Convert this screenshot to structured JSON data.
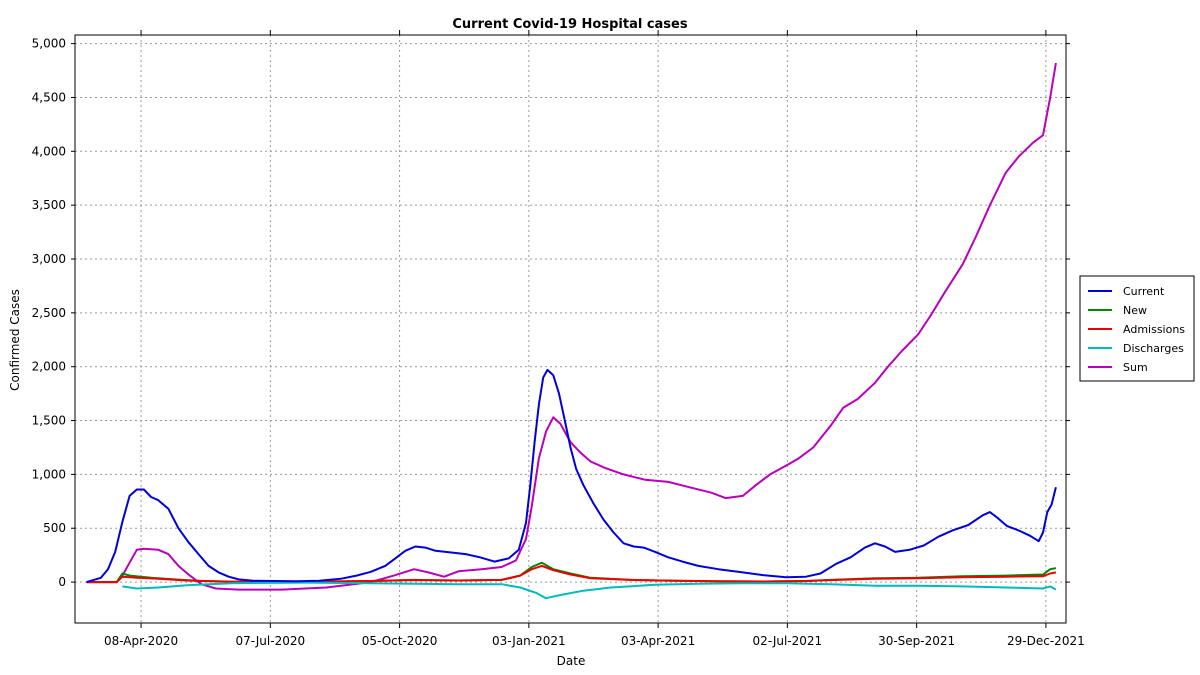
{
  "chart_data": {
    "type": "line",
    "title": "Current Covid-19 Hospital cases",
    "xlabel": "Date",
    "ylabel": "Confirmed Cases",
    "ylim": [
      -380,
      5080
    ],
    "xlim": [
      "2020-02-22",
      "2022-01-12"
    ],
    "y_ticks": [
      0,
      500,
      1000,
      1500,
      2000,
      2500,
      3000,
      3500,
      4000,
      4500,
      5000
    ],
    "y_tick_labels": [
      "0",
      "500",
      "1,000",
      "1,500",
      "2,000",
      "2,500",
      "3,000",
      "3,500",
      "4,000",
      "4,500",
      "5,000"
    ],
    "x_ticks": [
      "2020-04-08",
      "2020-07-07",
      "2020-10-05",
      "2021-01-03",
      "2021-04-03",
      "2021-07-02",
      "2021-09-30",
      "2021-12-29"
    ],
    "x_tick_labels": [
      "08-Apr-2020",
      "07-Jul-2020",
      "05-Oct-2020",
      "03-Jan-2021",
      "03-Apr-2021",
      "02-Jul-2021",
      "30-Sep-2021",
      "29-Dec-2021"
    ],
    "grid": true,
    "legend_position": "right",
    "series": [
      {
        "name": "Current",
        "color": "#0000dd",
        "points": [
          [
            "2020-03-01",
            0
          ],
          [
            "2020-03-06",
            20
          ],
          [
            "2020-03-11",
            40
          ],
          [
            "2020-03-16",
            120
          ],
          [
            "2020-03-21",
            280
          ],
          [
            "2020-03-26",
            560
          ],
          [
            "2020-03-31",
            800
          ],
          [
            "2020-04-05",
            860
          ],
          [
            "2020-04-10",
            860
          ],
          [
            "2020-04-15",
            790
          ],
          [
            "2020-04-20",
            760
          ],
          [
            "2020-04-27",
            680
          ],
          [
            "2020-05-04",
            500
          ],
          [
            "2020-05-11",
            370
          ],
          [
            "2020-05-18",
            260
          ],
          [
            "2020-05-25",
            150
          ],
          [
            "2020-06-01",
            90
          ],
          [
            "2020-06-08",
            50
          ],
          [
            "2020-06-15",
            25
          ],
          [
            "2020-06-25",
            12
          ],
          [
            "2020-07-10",
            10
          ],
          [
            "2020-07-25",
            8
          ],
          [
            "2020-08-10",
            12
          ],
          [
            "2020-08-25",
            30
          ],
          [
            "2020-09-05",
            60
          ],
          [
            "2020-09-15",
            95
          ],
          [
            "2020-09-25",
            150
          ],
          [
            "2020-10-02",
            220
          ],
          [
            "2020-10-09",
            290
          ],
          [
            "2020-10-16",
            330
          ],
          [
            "2020-10-23",
            320
          ],
          [
            "2020-10-30",
            290
          ],
          [
            "2020-11-10",
            275
          ],
          [
            "2020-11-20",
            260
          ],
          [
            "2020-11-30",
            230
          ],
          [
            "2020-12-10",
            190
          ],
          [
            "2020-12-20",
            220
          ],
          [
            "2020-12-27",
            300
          ],
          [
            "2021-01-01",
            550
          ],
          [
            "2021-01-04",
            900
          ],
          [
            "2021-01-07",
            1300
          ],
          [
            "2021-01-10",
            1650
          ],
          [
            "2021-01-13",
            1900
          ],
          [
            "2021-01-16",
            1970
          ],
          [
            "2021-01-20",
            1920
          ],
          [
            "2021-01-24",
            1750
          ],
          [
            "2021-01-28",
            1500
          ],
          [
            "2021-02-01",
            1250
          ],
          [
            "2021-02-05",
            1050
          ],
          [
            "2021-02-10",
            900
          ],
          [
            "2021-02-17",
            730
          ],
          [
            "2021-02-24",
            580
          ],
          [
            "2021-03-03",
            460
          ],
          [
            "2021-03-10",
            360
          ],
          [
            "2021-03-17",
            330
          ],
          [
            "2021-03-24",
            320
          ],
          [
            "2021-04-01",
            280
          ],
          [
            "2021-04-10",
            230
          ],
          [
            "2021-04-20",
            190
          ],
          [
            "2021-05-01",
            150
          ],
          [
            "2021-05-15",
            120
          ],
          [
            "2021-06-01",
            90
          ],
          [
            "2021-06-15",
            65
          ],
          [
            "2021-07-01",
            45
          ],
          [
            "2021-07-15",
            50
          ],
          [
            "2021-07-25",
            80
          ],
          [
            "2021-08-05",
            170
          ],
          [
            "2021-08-15",
            230
          ],
          [
            "2021-08-25",
            320
          ],
          [
            "2021-09-01",
            360
          ],
          [
            "2021-09-08",
            330
          ],
          [
            "2021-09-15",
            280
          ],
          [
            "2021-09-25",
            300
          ],
          [
            "2021-10-05",
            340
          ],
          [
            "2021-10-15",
            420
          ],
          [
            "2021-10-25",
            480
          ],
          [
            "2021-11-05",
            530
          ],
          [
            "2021-11-15",
            620
          ],
          [
            "2021-11-20",
            650
          ],
          [
            "2021-11-25",
            600
          ],
          [
            "2021-12-02",
            520
          ],
          [
            "2021-12-10",
            480
          ],
          [
            "2021-12-18",
            430
          ],
          [
            "2021-12-24",
            380
          ],
          [
            "2021-12-27",
            460
          ],
          [
            "2021-12-30",
            650
          ],
          [
            "2022-01-02",
            720
          ],
          [
            "2022-01-05",
            880
          ]
        ]
      },
      {
        "name": "New",
        "color": "#008800",
        "points": [
          [
            "2020-03-01",
            0
          ],
          [
            "2020-03-22",
            0
          ],
          [
            "2020-03-26",
            80
          ],
          [
            "2020-03-31",
            60
          ],
          [
            "2020-04-15",
            40
          ],
          [
            "2020-05-01",
            25
          ],
          [
            "2020-05-20",
            10
          ],
          [
            "2020-06-15",
            3
          ],
          [
            "2020-08-01",
            3
          ],
          [
            "2020-09-15",
            10
          ],
          [
            "2020-10-15",
            20
          ],
          [
            "2020-11-15",
            15
          ],
          [
            "2020-12-15",
            20
          ],
          [
            "2020-12-28",
            60
          ],
          [
            "2021-01-05",
            140
          ],
          [
            "2021-01-12",
            180
          ],
          [
            "2021-01-20",
            120
          ],
          [
            "2021-02-01",
            80
          ],
          [
            "2021-02-15",
            40
          ],
          [
            "2021-03-15",
            20
          ],
          [
            "2021-04-15",
            12
          ],
          [
            "2021-05-15",
            8
          ],
          [
            "2021-06-15",
            5
          ],
          [
            "2021-07-15",
            10
          ],
          [
            "2021-08-01",
            20
          ],
          [
            "2021-09-01",
            35
          ],
          [
            "2021-10-01",
            40
          ],
          [
            "2021-11-01",
            55
          ],
          [
            "2021-12-01",
            60
          ],
          [
            "2021-12-27",
            70
          ],
          [
            "2022-01-01",
            120
          ],
          [
            "2022-01-05",
            130
          ]
        ]
      },
      {
        "name": "Admissions",
        "color": "#ee0000",
        "points": [
          [
            "2020-03-01",
            0
          ],
          [
            "2020-03-22",
            0
          ],
          [
            "2020-03-26",
            50
          ],
          [
            "2020-04-05",
            40
          ],
          [
            "2020-04-20",
            30
          ],
          [
            "2020-05-10",
            15
          ],
          [
            "2020-06-10",
            3
          ],
          [
            "2020-08-01",
            3
          ],
          [
            "2020-09-15",
            10
          ],
          [
            "2020-10-15",
            18
          ],
          [
            "2020-11-15",
            15
          ],
          [
            "2020-12-15",
            20
          ],
          [
            "2020-12-28",
            60
          ],
          [
            "2021-01-05",
            120
          ],
          [
            "2021-01-12",
            150
          ],
          [
            "2021-01-20",
            110
          ],
          [
            "2021-02-01",
            70
          ],
          [
            "2021-02-15",
            35
          ],
          [
            "2021-03-15",
            20
          ],
          [
            "2021-04-15",
            12
          ],
          [
            "2021-05-15",
            8
          ],
          [
            "2021-06-15",
            5
          ],
          [
            "2021-07-15",
            10
          ],
          [
            "2021-08-01",
            18
          ],
          [
            "2021-09-01",
            30
          ],
          [
            "2021-10-01",
            35
          ],
          [
            "2021-11-01",
            45
          ],
          [
            "2021-12-01",
            50
          ],
          [
            "2021-12-27",
            55
          ],
          [
            "2022-01-01",
            80
          ],
          [
            "2022-01-05",
            90
          ]
        ]
      },
      {
        "name": "Discharges",
        "color": "#00bbbb",
        "points": [
          [
            "2020-03-26",
            -40
          ],
          [
            "2020-04-05",
            -60
          ],
          [
            "2020-04-20",
            -50
          ],
          [
            "2020-05-10",
            -30
          ],
          [
            "2020-06-10",
            -10
          ],
          [
            "2020-08-01",
            -5
          ],
          [
            "2020-09-15",
            -10
          ],
          [
            "2020-10-15",
            -15
          ],
          [
            "2020-11-15",
            -20
          ],
          [
            "2020-12-15",
            -20
          ],
          [
            "2020-12-28",
            -50
          ],
          [
            "2021-01-08",
            -100
          ],
          [
            "2021-01-15",
            -150
          ],
          [
            "2021-01-25",
            -120
          ],
          [
            "2021-02-10",
            -80
          ],
          [
            "2021-03-01",
            -50
          ],
          [
            "2021-04-01",
            -25
          ],
          [
            "2021-05-01",
            -15
          ],
          [
            "2021-06-01",
            -10
          ],
          [
            "2021-07-01",
            -10
          ],
          [
            "2021-08-01",
            -20
          ],
          [
            "2021-09-01",
            -35
          ],
          [
            "2021-10-01",
            -35
          ],
          [
            "2021-11-01",
            -40
          ],
          [
            "2021-12-01",
            -50
          ],
          [
            "2021-12-27",
            -60
          ],
          [
            "2022-01-01",
            -40
          ],
          [
            "2022-01-05",
            -70
          ]
        ]
      },
      {
        "name": "Sum",
        "color": "#bb00bb",
        "points": [
          [
            "2020-03-01",
            0
          ],
          [
            "2020-03-22",
            0
          ],
          [
            "2020-03-26",
            60
          ],
          [
            "2020-03-31",
            180
          ],
          [
            "2020-04-05",
            300
          ],
          [
            "2020-04-10",
            310
          ],
          [
            "2020-04-20",
            300
          ],
          [
            "2020-04-27",
            260
          ],
          [
            "2020-05-04",
            150
          ],
          [
            "2020-05-11",
            70
          ],
          [
            "2020-05-20",
            -20
          ],
          [
            "2020-05-30",
            -60
          ],
          [
            "2020-06-15",
            -70
          ],
          [
            "2020-07-15",
            -70
          ],
          [
            "2020-08-15",
            -50
          ],
          [
            "2020-09-15",
            0
          ],
          [
            "2020-10-01",
            60
          ],
          [
            "2020-10-15",
            120
          ],
          [
            "2020-10-25",
            90
          ],
          [
            "2020-11-05",
            50
          ],
          [
            "2020-11-15",
            100
          ],
          [
            "2020-12-01",
            120
          ],
          [
            "2020-12-15",
            140
          ],
          [
            "2020-12-25",
            200
          ],
          [
            "2021-01-01",
            400
          ],
          [
            "2021-01-05",
            700
          ],
          [
            "2021-01-10",
            1150
          ],
          [
            "2021-01-15",
            1400
          ],
          [
            "2021-01-20",
            1530
          ],
          [
            "2021-01-25",
            1470
          ],
          [
            "2021-02-01",
            1300
          ],
          [
            "2021-02-08",
            1200
          ],
          [
            "2021-02-15",
            1120
          ],
          [
            "2021-02-25",
            1060
          ],
          [
            "2021-03-10",
            1000
          ],
          [
            "2021-03-25",
            950
          ],
          [
            "2021-04-10",
            930
          ],
          [
            "2021-04-25",
            880
          ],
          [
            "2021-05-10",
            830
          ],
          [
            "2021-05-20",
            780
          ],
          [
            "2021-06-01",
            800
          ],
          [
            "2021-06-10",
            900
          ],
          [
            "2021-06-20",
            1000
          ],
          [
            "2021-07-01",
            1080
          ],
          [
            "2021-07-10",
            1150
          ],
          [
            "2021-07-20",
            1250
          ],
          [
            "2021-08-01",
            1450
          ],
          [
            "2021-08-10",
            1620
          ],
          [
            "2021-08-20",
            1700
          ],
          [
            "2021-09-01",
            1850
          ],
          [
            "2021-09-10",
            2000
          ],
          [
            "2021-09-20",
            2150
          ],
          [
            "2021-10-01",
            2300
          ],
          [
            "2021-10-10",
            2480
          ],
          [
            "2021-10-20",
            2700
          ],
          [
            "2021-11-01",
            2950
          ],
          [
            "2021-11-10",
            3200
          ],
          [
            "2021-11-20",
            3500
          ],
          [
            "2021-12-01",
            3800
          ],
          [
            "2021-12-10",
            3950
          ],
          [
            "2021-12-20",
            4080
          ],
          [
            "2021-12-27",
            4150
          ],
          [
            "2022-01-01",
            4500
          ],
          [
            "2022-01-05",
            4820
          ]
        ]
      }
    ]
  }
}
